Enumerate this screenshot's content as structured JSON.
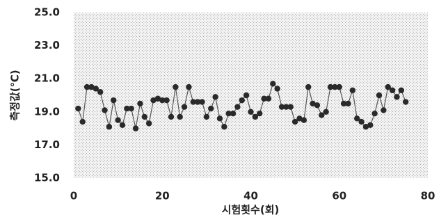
{
  "chart_data": {
    "type": "line",
    "x_label": "시험횟수(회)",
    "y_label": "측정값(℃)",
    "x": [
      1,
      2,
      3,
      4,
      5,
      6,
      7,
      8,
      9,
      10,
      11,
      12,
      13,
      14,
      15,
      16,
      17,
      18,
      19,
      20,
      21,
      22,
      23,
      24,
      25,
      26,
      27,
      28,
      29,
      30,
      31,
      32,
      33,
      34,
      35,
      36,
      37,
      38,
      39,
      40,
      41,
      42,
      43,
      44,
      45,
      46,
      47,
      48,
      49,
      50,
      51,
      52,
      53,
      54,
      55,
      56,
      57,
      58,
      59,
      60,
      61,
      62,
      63,
      64,
      65,
      66,
      67,
      68,
      69,
      70,
      71,
      72,
      73,
      74,
      75
    ],
    "series": [
      {
        "color": "#2a2a2a",
        "values": [
          19.2,
          18.4,
          20.5,
          20.5,
          20.4,
          20.2,
          19.1,
          18.1,
          19.7,
          18.5,
          18.2,
          19.2,
          19.2,
          18.0,
          19.5,
          18.7,
          18.3,
          19.7,
          19.8,
          19.7,
          19.7,
          18.7,
          20.5,
          18.7,
          19.3,
          20.5,
          19.6,
          19.6,
          19.6,
          18.7,
          19.2,
          19.9,
          18.6,
          18.1,
          18.9,
          18.9,
          19.3,
          19.7,
          20.0,
          19.0,
          18.7,
          18.9,
          19.8,
          19.8,
          20.7,
          20.4,
          19.3,
          19.3,
          19.3,
          18.4,
          18.6,
          18.5,
          20.5,
          19.5,
          19.4,
          18.8,
          19.0,
          20.5,
          20.5,
          20.5,
          19.5,
          19.5,
          20.3,
          18.6,
          18.4,
          18.1,
          18.2,
          18.9,
          20.0,
          19.1,
          20.5,
          20.3,
          19.9,
          20.3,
          19.6
        ]
      }
    ],
    "xlim": [
      0,
      80
    ],
    "xticks": [
      0,
      20,
      40,
      60,
      80
    ],
    "ylim": [
      15,
      25
    ],
    "yticks": [
      {
        "value": 15,
        "label": "15.0"
      },
      {
        "value": 17,
        "label": "17.0"
      },
      {
        "value": 19,
        "label": "19.0"
      },
      {
        "value": 21,
        "label": "21.0"
      },
      {
        "value": 23,
        "label": "23.0"
      },
      {
        "value": 25,
        "label": "25.0"
      }
    ]
  }
}
